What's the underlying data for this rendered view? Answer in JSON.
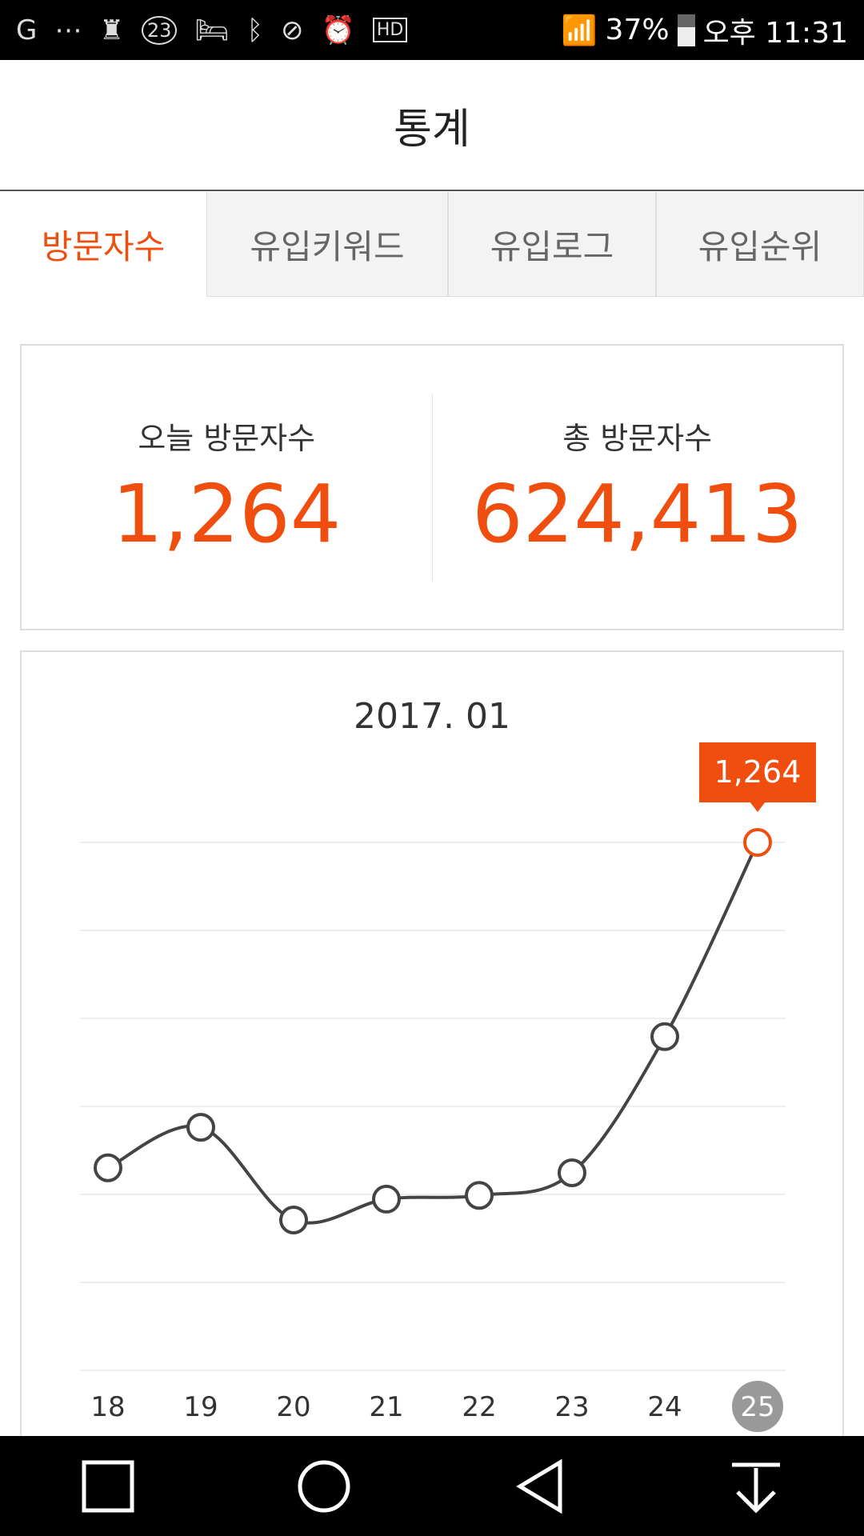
{
  "status_bar": {
    "battery": "37%",
    "time": "오후 11:31",
    "badge": "23",
    "icons": [
      "g-icon",
      "message-icon",
      "keyhole-icon",
      "calendar-23-icon",
      "bed-icon",
      "bluetooth-icon",
      "block-icon",
      "alarm-icon",
      "hd-icon",
      "wifi-lock-icon",
      "signal-icon",
      "battery-icon"
    ]
  },
  "header": {
    "title": "통계"
  },
  "tabs": [
    {
      "label": "방문자수",
      "active": true
    },
    {
      "label": "유입키워드"
    },
    {
      "label": "유입로그"
    },
    {
      "label": "유입순위"
    }
  ],
  "stats": {
    "today_label": "오늘 방문자수",
    "today_value": "1,264",
    "total_label": "총 방문자수",
    "total_value": "624,413"
  },
  "colors": {
    "accent": "#f04e0f",
    "line": "#444444"
  },
  "chart_data": {
    "type": "line",
    "title": "2017. 01",
    "categories": [
      "18",
      "19",
      "20",
      "21",
      "22",
      "23",
      "24",
      "25"
    ],
    "values": [
      485,
      582,
      360,
      410,
      419,
      473,
      799,
      1264
    ],
    "highlight_index": 7,
    "highlight_label": "1,264",
    "ylim": [
      0,
      1264
    ],
    "grid": true,
    "y_ticks_shown": false
  },
  "nav": [
    "recent-apps-icon",
    "home-icon",
    "back-icon",
    "notification-pull-icon"
  ]
}
